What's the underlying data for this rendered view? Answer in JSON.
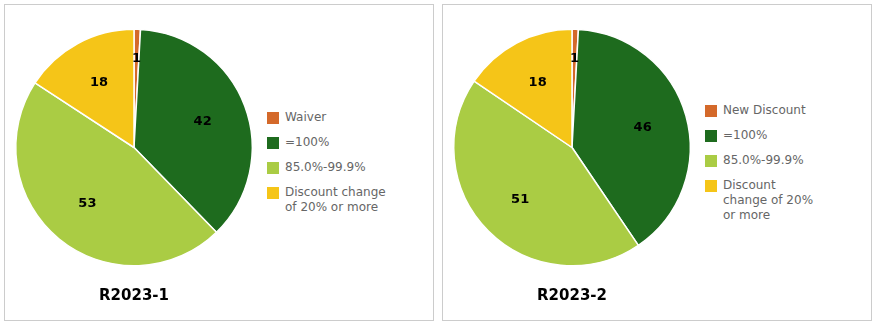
{
  "chart_data": [
    {
      "type": "pie",
      "title": "R2023-1",
      "categories": [
        "Waiver",
        "=100%",
        "85.0%-99.9%",
        "Discount change\nof 20% or more"
      ],
      "values": [
        1,
        42,
        53,
        18
      ],
      "colors": [
        "#D4692A",
        "#1E6B1E",
        "#AACC44",
        "#F5C518"
      ],
      "data_labels": true,
      "legend": "right"
    },
    {
      "type": "pie",
      "title": "R2023-2",
      "categories": [
        "New Discount",
        "=100%",
        "85.0%-99.9%",
        "Discount\nchange of 20%\nor more"
      ],
      "values": [
        1,
        46,
        51,
        18
      ],
      "colors": [
        "#D4692A",
        "#1E6B1E",
        "#AACC44",
        "#F5C518"
      ],
      "data_labels": true,
      "legend": "right"
    }
  ]
}
